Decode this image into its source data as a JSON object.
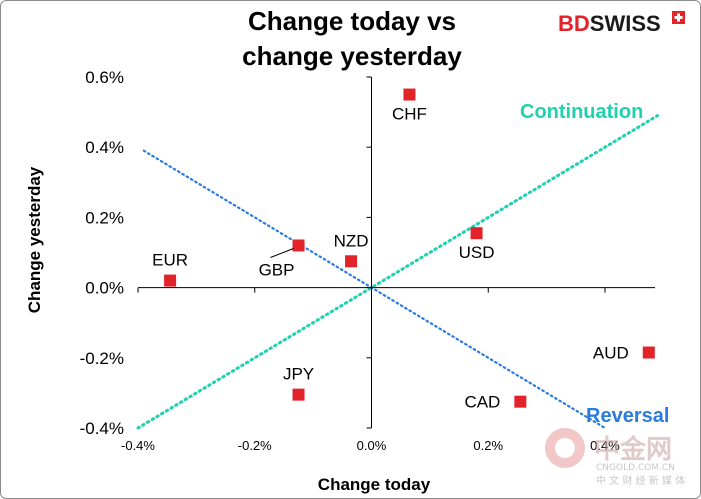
{
  "brand": {
    "part1": "BD",
    "part2": "SWISS"
  },
  "watermark": {
    "name": "中金网",
    "domain": "CNGOLD.COM.CN",
    "tagline": "中 文 财 经 新 媒 体"
  },
  "chart_data": {
    "type": "scatter",
    "title_lines": [
      "Change today vs",
      "change yesterday"
    ],
    "xlabel": "Change today",
    "ylabel": "Change yesterday",
    "xlim": [
      -0.4,
      0.4
    ],
    "ylim": [
      -0.4,
      0.6
    ],
    "x_ticks": [
      {
        "value": -0.4,
        "label": "-0.4%"
      },
      {
        "value": -0.2,
        "label": "-0.2%"
      },
      {
        "value": 0.0,
        "label": "0.0%"
      },
      {
        "value": 0.2,
        "label": "0.2%"
      },
      {
        "value": 0.4,
        "label": "0.4%"
      }
    ],
    "y_ticks": [
      {
        "value": 0.6,
        "label": "0.6%"
      },
      {
        "value": 0.4,
        "label": "0.4%"
      },
      {
        "value": 0.2,
        "label": "0.2%"
      },
      {
        "value": 0.0,
        "label": "0.0%"
      },
      {
        "value": -0.2,
        "label": "-0.2%"
      },
      {
        "value": -0.4,
        "label": "-0.4%"
      }
    ],
    "points": [
      {
        "label": "CHF",
        "x": 0.065,
        "y": 0.55,
        "label_pos": "below",
        "color": "#e3232a"
      },
      {
        "label": "USD",
        "x": 0.18,
        "y": 0.155,
        "label_pos": "below",
        "color": "#e3232a"
      },
      {
        "label": "NZD",
        "x": -0.035,
        "y": 0.075,
        "label_pos": "above",
        "color": "#e3232a"
      },
      {
        "label": "GBP",
        "x": -0.125,
        "y": 0.12,
        "label_pos": "below-left",
        "color": "#e3232a"
      },
      {
        "label": "EUR",
        "x": -0.345,
        "y": 0.02,
        "label_pos": "above",
        "color": "#e3232a"
      },
      {
        "label": "JPY",
        "x": -0.125,
        "y": -0.305,
        "label_pos": "above",
        "color": "#e3232a"
      },
      {
        "label": "CAD",
        "x": 0.255,
        "y": -0.325,
        "label_pos": "left",
        "color": "#e3232a"
      },
      {
        "label": "AUD",
        "x": 0.475,
        "y": -0.185,
        "label_pos": "left",
        "color": "#e3232a"
      }
    ],
    "reference_lines": [
      {
        "name": "Continuation",
        "x": [
          -0.4,
          0.49
        ],
        "y": [
          -0.4,
          0.49
        ],
        "color": "#1ed2b0"
      },
      {
        "name": "Reversal",
        "x": [
          -0.39,
          0.4
        ],
        "y": [
          0.39,
          -0.4
        ],
        "color": "#2a7be0"
      }
    ],
    "grid": false,
    "legend": "none"
  }
}
